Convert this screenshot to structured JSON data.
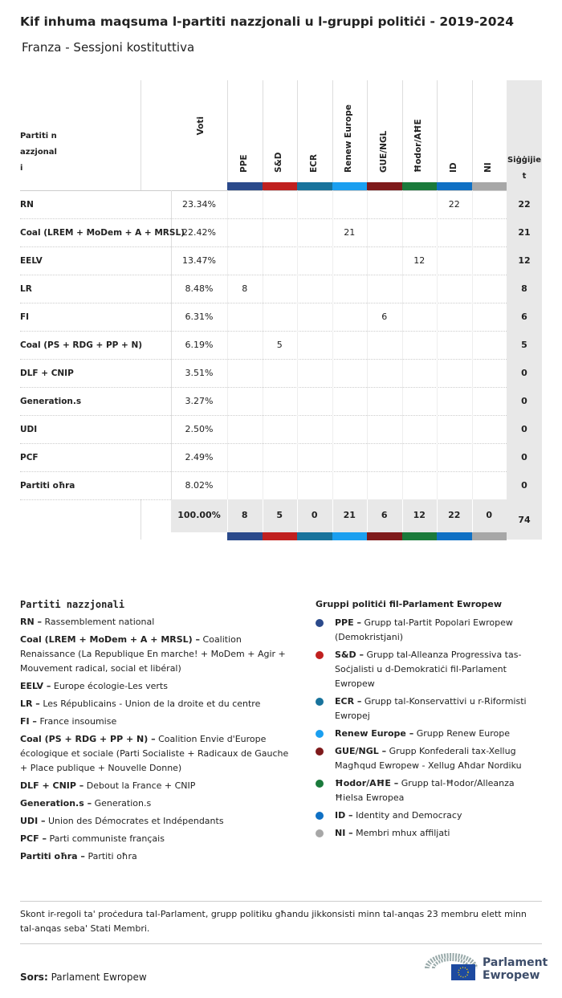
{
  "header": {
    "title": "Kif inhuma maqsuma l-partiti nazzjonali u l-gruppi politiċi - 2019-2024",
    "subtitle": "Franza - Sessjoni kostituttiva"
  },
  "table": {
    "party_header": "Partiti nazzjonali",
    "votes_header": "Voti",
    "total_header": "Siġġijiet",
    "groups": [
      {
        "name": "PPE",
        "color": "#2b4a8b"
      },
      {
        "name": "S&D",
        "color": "#c0201f"
      },
      {
        "name": "ECR",
        "color": "#18739c"
      },
      {
        "name": "Renew Europe",
        "color": "#1a9ff0"
      },
      {
        "name": "GUE/NGL",
        "color": "#7e1a1b"
      },
      {
        "name": "Ħodor/AĦE",
        "color": "#1a7a3b"
      },
      {
        "name": "ID",
        "color": "#0f70c4"
      },
      {
        "name": "NI",
        "color": "#a7a7a7"
      }
    ],
    "rows": [
      {
        "party": "RN",
        "votes": "23.34%",
        "cells": [
          null,
          null,
          null,
          null,
          null,
          null,
          22,
          null
        ],
        "total": 22
      },
      {
        "party": "Coal (LREM + MoDem + A + MRSL)",
        "votes": "22.42%",
        "cells": [
          null,
          null,
          null,
          21,
          null,
          null,
          null,
          null
        ],
        "total": 21
      },
      {
        "party": "EELV",
        "votes": "13.47%",
        "cells": [
          null,
          null,
          null,
          null,
          null,
          12,
          null,
          null
        ],
        "total": 12
      },
      {
        "party": "LR",
        "votes": "8.48%",
        "cells": [
          8,
          null,
          null,
          null,
          null,
          null,
          null,
          null
        ],
        "total": 8
      },
      {
        "party": "FI",
        "votes": "6.31%",
        "cells": [
          null,
          null,
          null,
          null,
          6,
          null,
          null,
          null
        ],
        "total": 6
      },
      {
        "party": "Coal (PS + RDG + PP + N)",
        "votes": "6.19%",
        "cells": [
          null,
          5,
          null,
          null,
          null,
          null,
          null,
          null
        ],
        "total": 5
      },
      {
        "party": "DLF + CNIP",
        "votes": "3.51%",
        "cells": [
          null,
          null,
          null,
          null,
          null,
          null,
          null,
          null
        ],
        "total": 0
      },
      {
        "party": "Generation.s",
        "votes": "3.27%",
        "cells": [
          null,
          null,
          null,
          null,
          null,
          null,
          null,
          null
        ],
        "total": 0
      },
      {
        "party": "UDI",
        "votes": "2.50%",
        "cells": [
          null,
          null,
          null,
          null,
          null,
          null,
          null,
          null
        ],
        "total": 0
      },
      {
        "party": "PCF",
        "votes": "2.49%",
        "cells": [
          null,
          null,
          null,
          null,
          null,
          null,
          null,
          null
        ],
        "total": 0
      },
      {
        "party": "Partiti oħra",
        "votes": "8.02%",
        "cells": [
          null,
          null,
          null,
          null,
          null,
          null,
          null,
          null
        ],
        "total": 0
      }
    ],
    "totals": {
      "votes": "100.00%",
      "cells": [
        8,
        5,
        0,
        21,
        6,
        12,
        22,
        0
      ],
      "total": 74
    }
  },
  "legend_parties": {
    "title": "Partiti nazzjonali",
    "items": [
      {
        "abbr": "RN –",
        "desc": "Rassemblement national"
      },
      {
        "abbr": "Coal (LREM + MoDem + A + MRSL) –",
        "desc": "Coalition Renaissance (La Republique En marche! + MoDem + Agir + Mouvement radical, social et libéral)"
      },
      {
        "abbr": "EELV –",
        "desc": "Europe écologie-Les verts"
      },
      {
        "abbr": "LR –",
        "desc": "Les Républicains - Union de la droite et du centre"
      },
      {
        "abbr": "FI –",
        "desc": "France insoumise"
      },
      {
        "abbr": "Coal (PS + RDG + PP + N) –",
        "desc": "Coalition Envie d'Europe écologique et sociale (Parti Socialiste + Radicaux de Gauche + Place publique + Nouvelle Donne)"
      },
      {
        "abbr": "DLF + CNIP –",
        "desc": "Debout la France + CNIP"
      },
      {
        "abbr": "Generation.s –",
        "desc": "Generation.s"
      },
      {
        "abbr": "UDI –",
        "desc": "Union des Démocrates et Indépendants"
      },
      {
        "abbr": "PCF –",
        "desc": "Parti communiste français"
      },
      {
        "abbr": "Partiti oħra –",
        "desc": "Partiti oħra"
      }
    ]
  },
  "legend_groups": {
    "title": "Gruppi politiċi fil-Parlament Ewropew",
    "items": [
      {
        "abbr": "PPE –",
        "desc": "Grupp tal-Partit Popolari Ewropew (Demokristjani)",
        "color": "#2b4a8b"
      },
      {
        "abbr": "S&D –",
        "desc": "Grupp tal-Alleanza Progressiva tas-Soċjalisti u d-Demokratiċi fil-Parlament Ewropew",
        "color": "#c0201f"
      },
      {
        "abbr": "ECR –",
        "desc": "Grupp tal-Konservattivi u r-Riformisti Ewropej",
        "color": "#18739c"
      },
      {
        "abbr": "Renew Europe –",
        "desc": "Grupp Renew Europe",
        "color": "#1a9ff0"
      },
      {
        "abbr": "GUE/NGL –",
        "desc": "Grupp Konfederali tax-Xellug Magħqud Ewropew - Xellug Aħdar Nordiku",
        "color": "#7e1a1b"
      },
      {
        "abbr": "Ħodor/AĦE –",
        "desc": "Grupp tal-Ħodor/Alleanza Ħielsa Ewropea",
        "color": "#1a7a3b"
      },
      {
        "abbr": "ID –",
        "desc": "Identity and Democracy",
        "color": "#0f70c4"
      },
      {
        "abbr": "NI –",
        "desc": "Membri mhux affiljati",
        "color": "#a7a7a7"
      }
    ]
  },
  "footer": {
    "note": "Skont ir-regoli ta' proċedura tal-Parlament, grupp politiku għandu jikkonsisti minn tal-anqas 23 membru elett minn tal-anqas seba' Stati Membri.",
    "source_label": "Sors:",
    "source": "Parlament Ewropew",
    "logo_line1": "Parlament",
    "logo_line2": "Ewropew"
  }
}
